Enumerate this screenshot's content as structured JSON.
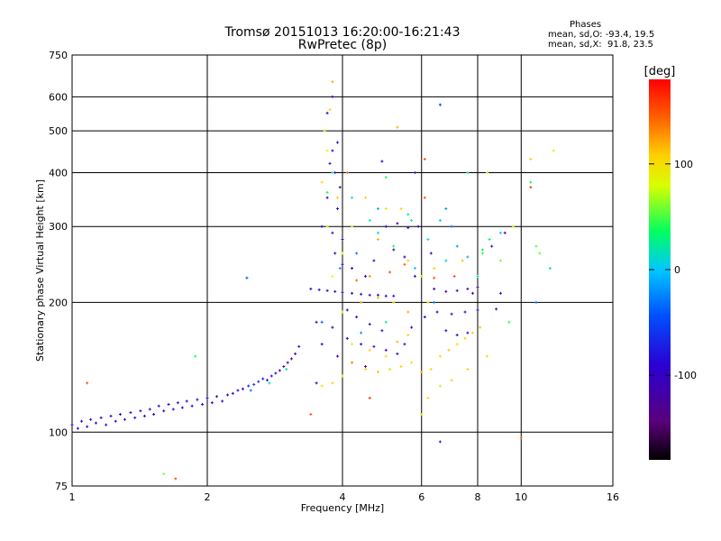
{
  "chart_data": {
    "type": "scatter",
    "title": "Tromsø 20151013 16:20:00-16:21:43",
    "subtitle": "RwPretec (8p)",
    "xlabel": "Frequency [MHz]",
    "ylabel": "Stationary phase Virtual Height [km]",
    "x_scale": "log",
    "y_scale": "log",
    "xlim": [
      1,
      16
    ],
    "ylim": [
      75,
      750
    ],
    "x_ticks": [
      1,
      2,
      4,
      6,
      8,
      10,
      16
    ],
    "x_tick_labels": [
      "1",
      "2",
      "4",
      "6",
      "8",
      "10",
      "16"
    ],
    "y_ticks": [
      75,
      100,
      200,
      300,
      400,
      500,
      600,
      750
    ],
    "y_tick_labels": [
      "75",
      "100",
      "200",
      "300",
      "400",
      "500",
      "600",
      "750"
    ],
    "grid": true,
    "stats": {
      "heading": "Phases",
      "line_o": "mean, sd,O: -93.4, 19.5",
      "line_x": "mean, sd,X:  91.8, 23.5"
    },
    "colorbar": {
      "label": "[deg]",
      "range": [
        -180,
        180
      ],
      "ticks": [
        100,
        0,
        -100
      ],
      "tick_labels": [
        "100",
        "0",
        "-100"
      ],
      "colormap": "rainbow: black-purple-blue-cyan-green-yellow-orange-red"
    },
    "series": [
      {
        "points": [
          [
            1.0,
            104,
            -95
          ],
          [
            1.03,
            102,
            -92
          ],
          [
            1.05,
            106,
            -98
          ],
          [
            1.08,
            103,
            -90
          ],
          [
            1.1,
            107,
            -96
          ],
          [
            1.13,
            105,
            -93
          ],
          [
            1.16,
            108,
            -99
          ],
          [
            1.19,
            104,
            -91
          ],
          [
            1.22,
            109,
            -97
          ],
          [
            1.25,
            106,
            -94
          ],
          [
            1.28,
            110,
            -100
          ],
          [
            1.31,
            107,
            -92
          ],
          [
            1.35,
            111,
            -95
          ],
          [
            1.38,
            108,
            -90
          ],
          [
            1.42,
            112,
            -97
          ],
          [
            1.45,
            109,
            -93
          ],
          [
            1.49,
            113,
            -99
          ],
          [
            1.52,
            110,
            -91
          ],
          [
            1.56,
            115,
            -96
          ],
          [
            1.6,
            112,
            -94
          ],
          [
            1.64,
            116,
            -100
          ],
          [
            1.68,
            113,
            -92
          ],
          [
            1.72,
            117,
            -95
          ],
          [
            1.76,
            114,
            -98
          ],
          [
            1.8,
            118,
            -91
          ],
          [
            1.85,
            115,
            -97
          ],
          [
            1.9,
            119,
            -93
          ],
          [
            1.95,
            116,
            -96
          ],
          [
            2.0,
            120,
            -94
          ],
          [
            2.05,
            117,
            -92
          ],
          [
            2.1,
            121,
            -98
          ],
          [
            2.16,
            118,
            -95
          ],
          [
            2.22,
            122,
            -90
          ],
          [
            2.28,
            123,
            -93
          ],
          [
            2.34,
            125,
            -96
          ],
          [
            2.4,
            126,
            -91
          ],
          [
            2.47,
            128,
            -75
          ],
          [
            2.54,
            129,
            -60
          ],
          [
            2.6,
            131,
            -70
          ],
          [
            2.66,
            133,
            -85
          ],
          [
            2.72,
            132,
            -95
          ],
          [
            2.78,
            135,
            -100
          ],
          [
            2.84,
            137,
            -92
          ],
          [
            2.9,
            139,
            -110
          ],
          [
            2.96,
            142,
            -120
          ],
          [
            3.02,
            145,
            -115
          ],
          [
            3.08,
            148,
            -125
          ],
          [
            3.14,
            152,
            -118
          ],
          [
            3.2,
            158,
            -122
          ],
          [
            2.5,
            125,
            -30
          ],
          [
            2.75,
            130,
            10
          ],
          [
            3.0,
            140,
            25
          ],
          [
            1.7,
            78,
            150
          ],
          [
            1.6,
            80,
            60
          ],
          [
            2.45,
            228,
            -40
          ],
          [
            1.88,
            150,
            40
          ],
          [
            1.08,
            130,
            150
          ]
        ]
      },
      {
        "points": [
          [
            3.4,
            215,
            -100
          ],
          [
            3.55,
            214,
            -105
          ],
          [
            3.7,
            213,
            -98
          ],
          [
            3.85,
            212,
            -110
          ],
          [
            4.0,
            211,
            -96
          ],
          [
            4.2,
            210,
            -104
          ],
          [
            4.4,
            209,
            -99
          ],
          [
            4.6,
            208,
            -112
          ],
          [
            4.8,
            208,
            -100
          ],
          [
            5.0,
            207,
            -95
          ],
          [
            5.2,
            207,
            -108
          ],
          [
            3.5,
            180,
            -90
          ],
          [
            3.8,
            175,
            -102
          ],
          [
            4.1,
            165,
            -95
          ],
          [
            4.4,
            160,
            -100
          ],
          [
            4.7,
            158,
            -92
          ],
          [
            5.0,
            155,
            -98
          ],
          [
            5.3,
            152,
            -105
          ],
          [
            3.6,
            300,
            -97
          ],
          [
            3.8,
            290,
            -103
          ],
          [
            4.0,
            280,
            -95
          ],
          [
            3.7,
            350,
            -100
          ],
          [
            3.9,
            330,
            -96
          ],
          [
            3.75,
            420,
            -108
          ],
          [
            3.85,
            400,
            -92
          ],
          [
            3.8,
            450,
            -99
          ],
          [
            5.0,
            300,
            -96
          ],
          [
            5.3,
            305,
            -104
          ],
          [
            5.6,
            298,
            -95
          ],
          [
            5.9,
            300,
            -101
          ],
          [
            5.5,
            255,
            -98
          ],
          [
            4.2,
            240,
            -110
          ],
          [
            4.5,
            230,
            -95
          ],
          [
            6.4,
            215,
            -120
          ],
          [
            6.8,
            212,
            -125
          ],
          [
            7.2,
            213,
            -110
          ],
          [
            7.6,
            215,
            -118
          ],
          [
            8.0,
            217,
            -122
          ],
          [
            6.5,
            190,
            -100
          ],
          [
            7.0,
            188,
            -108
          ],
          [
            7.5,
            190,
            -95
          ],
          [
            8.0,
            192,
            -105
          ],
          [
            8.8,
            193,
            -112
          ],
          [
            3.6,
            160,
            -90
          ],
          [
            3.9,
            150,
            -100
          ],
          [
            4.2,
            145,
            -95
          ],
          [
            4.5,
            142,
            -105
          ],
          [
            4.1,
            192,
            -93
          ],
          [
            4.3,
            185,
            -100
          ],
          [
            4.6,
            178,
            -96
          ],
          [
            4.9,
            172,
            -102
          ],
          [
            6.8,
            172,
            -110
          ],
          [
            7.2,
            168,
            -108
          ],
          [
            7.6,
            170,
            -115
          ],
          [
            5.5,
            160,
            -100
          ],
          [
            5.7,
            175,
            -95
          ],
          [
            6.1,
            185,
            -90
          ],
          [
            5.2,
            265,
            -100
          ],
          [
            4.7,
            250,
            -97
          ],
          [
            6.3,
            260,
            -92
          ],
          [
            9.0,
            210,
            -115
          ],
          [
            9.2,
            290,
            -130
          ],
          [
            8.6,
            270,
            -95
          ],
          [
            7.8,
            210,
            -108
          ],
          [
            3.5,
            130,
            -98
          ],
          [
            3.9,
            470,
            -100
          ],
          [
            3.7,
            550,
            -95
          ],
          [
            3.8,
            600,
            -102
          ],
          [
            4.0,
            245,
            -98
          ],
          [
            5.8,
            230,
            -100
          ],
          [
            3.95,
            370,
            -110
          ],
          [
            3.85,
            260,
            -105
          ],
          [
            6.6,
            575,
            -60
          ],
          [
            6.6,
            95,
            -70
          ],
          [
            4.9,
            425,
            -100
          ],
          [
            5.8,
            400,
            -100
          ]
        ]
      },
      {
        "points": [
          [
            3.6,
            128,
            100
          ],
          [
            3.8,
            130,
            110
          ],
          [
            4.0,
            135,
            95
          ],
          [
            4.2,
            145,
            120
          ],
          [
            4.5,
            140,
            105
          ],
          [
            4.8,
            138,
            115
          ],
          [
            5.1,
            140,
            100
          ],
          [
            5.4,
            142,
            110
          ],
          [
            5.7,
            145,
            95
          ],
          [
            6.0,
            138,
            120
          ],
          [
            6.3,
            140,
            100
          ],
          [
            6.6,
            150,
            105
          ],
          [
            6.9,
            155,
            115
          ],
          [
            7.2,
            160,
            98
          ],
          [
            7.5,
            165,
            108
          ],
          [
            7.8,
            170,
            100
          ],
          [
            8.1,
            175,
            112
          ],
          [
            4.2,
            160,
            95
          ],
          [
            4.6,
            155,
            110
          ],
          [
            5.0,
            150,
            105
          ],
          [
            5.3,
            162,
            118
          ],
          [
            5.6,
            168,
            100
          ],
          [
            3.7,
            450,
            85
          ],
          [
            3.65,
            500,
            95
          ],
          [
            3.75,
            560,
            110
          ],
          [
            3.8,
            650,
            120
          ],
          [
            3.6,
            380,
            100
          ],
          [
            3.7,
            300,
            75
          ],
          [
            3.9,
            350,
            110
          ],
          [
            4.2,
            300,
            95
          ],
          [
            4.5,
            350,
            105
          ],
          [
            4.8,
            280,
            120
          ],
          [
            5.0,
            330,
            100
          ],
          [
            5.4,
            330,
            105
          ],
          [
            5.6,
            250,
            110
          ],
          [
            6.0,
            230,
            95
          ],
          [
            6.4,
            240,
            108
          ],
          [
            6.8,
            250,
            102
          ],
          [
            7.4,
            250,
            115
          ],
          [
            4.0,
            260,
            90
          ],
          [
            4.6,
            230,
            130
          ],
          [
            4.4,
            200,
            125
          ],
          [
            4.8,
            205,
            115
          ],
          [
            5.2,
            200,
            108
          ],
          [
            5.6,
            190,
            122
          ],
          [
            6.2,
            200,
            100
          ],
          [
            3.8,
            230,
            80
          ],
          [
            4.0,
            190,
            95
          ],
          [
            5.3,
            510,
            120
          ],
          [
            8.2,
            260,
            40
          ],
          [
            8.5,
            280,
            35
          ],
          [
            9.0,
            250,
            60
          ],
          [
            10.8,
            270,
            50
          ],
          [
            11.0,
            260,
            55
          ],
          [
            10.5,
            430,
            110
          ],
          [
            11.8,
            450,
            90
          ],
          [
            9.6,
            300,
            85
          ],
          [
            6.2,
            120,
            100
          ],
          [
            6.6,
            128,
            95
          ],
          [
            7.0,
            132,
            110
          ],
          [
            7.6,
            140,
            105
          ],
          [
            8.4,
            150,
            100
          ],
          [
            8.4,
            400,
            70
          ],
          [
            10.0,
            97,
            140
          ],
          [
            6.1,
            350,
            150
          ],
          [
            4.3,
            225,
            140
          ],
          [
            5.1,
            235,
            150
          ],
          [
            5.5,
            245,
            145
          ],
          [
            6.4,
            228,
            150
          ],
          [
            7.1,
            230,
            155
          ],
          [
            4.6,
            120,
            160
          ],
          [
            3.4,
            110,
            150
          ],
          [
            6.0,
            110,
            100
          ],
          [
            4.1,
            400,
            145
          ],
          [
            6.1,
            430,
            150
          ],
          [
            10.5,
            370,
            160
          ]
        ]
      },
      {
        "points": [
          [
            4.6,
            310,
            20
          ],
          [
            4.8,
            290,
            10
          ],
          [
            5.2,
            270,
            30
          ],
          [
            5.8,
            240,
            0
          ],
          [
            6.2,
            280,
            20
          ],
          [
            6.8,
            250,
            10
          ],
          [
            7.2,
            270,
            -20
          ],
          [
            7.6,
            255,
            -10
          ],
          [
            8.2,
            265,
            30
          ],
          [
            3.95,
            240,
            -20
          ],
          [
            4.3,
            260,
            -30
          ],
          [
            4.8,
            330,
            -10
          ],
          [
            5.6,
            320,
            20
          ],
          [
            6.6,
            310,
            0
          ],
          [
            7.0,
            300,
            -30
          ],
          [
            8.0,
            230,
            20
          ],
          [
            3.6,
            180,
            -40
          ],
          [
            4.4,
            170,
            -20
          ],
          [
            5.0,
            180,
            30
          ],
          [
            6.4,
            200,
            -30
          ],
          [
            9.4,
            180,
            40
          ],
          [
            10.8,
            200,
            -30
          ],
          [
            3.7,
            360,
            40
          ],
          [
            3.8,
            400,
            30
          ],
          [
            5.0,
            390,
            40
          ],
          [
            6.8,
            330,
            -20
          ],
          [
            7.6,
            400,
            20
          ],
          [
            4.2,
            350,
            20
          ],
          [
            5.7,
            310,
            30
          ],
          [
            11.6,
            240,
            20
          ],
          [
            10.5,
            380,
            30
          ],
          [
            9.0,
            290,
            0
          ]
        ]
      }
    ]
  }
}
